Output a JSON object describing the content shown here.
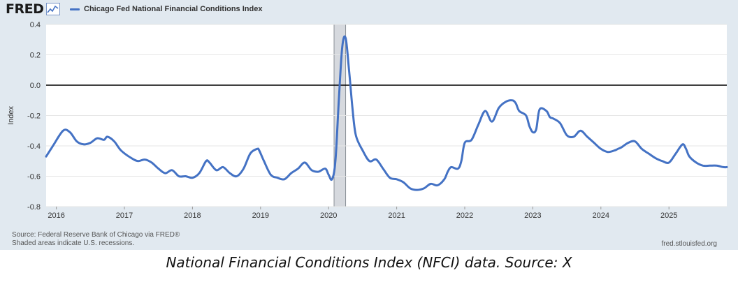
{
  "brand": {
    "name": "FRED",
    "icon": "trend-chart-icon"
  },
  "colors": {
    "series": "#4472c4",
    "panel": "#e1e9f0",
    "plot": "#ffffff",
    "recession": "#d6d9de",
    "zero_line": "#000000"
  },
  "footer": {
    "source": "Source: Federal Reserve Bank of Chicago via FRED®",
    "shading": "Shaded areas indicate U.S. recessions.",
    "url": "fred.stlouisfed.org"
  },
  "caption": "National Financial Conditions Index (NFCI) data. Source: X",
  "chart_data": {
    "type": "line",
    "title": "",
    "xlabel": "",
    "ylabel": "Index",
    "xlim": [
      2015.85,
      2025.85
    ],
    "ylim": [
      -0.8,
      0.4
    ],
    "y_ticks": [
      "0.4",
      "0.2",
      "0.0",
      "-0.2",
      "-0.4",
      "-0.6",
      "-0.8"
    ],
    "y_tick_values": [
      0.4,
      0.2,
      0.0,
      -0.2,
      -0.4,
      -0.6,
      -0.8
    ],
    "x_ticks": [
      "2016",
      "2017",
      "2018",
      "2019",
      "2020",
      "2021",
      "2022",
      "2023",
      "2024",
      "2025"
    ],
    "x_tick_values": [
      2016,
      2017,
      2018,
      2019,
      2020,
      2021,
      2022,
      2023,
      2024,
      2025
    ],
    "grid": true,
    "zero_line": true,
    "recessions": [
      [
        2020.08,
        2020.25
      ]
    ],
    "legend_position": "top-left",
    "series": [
      {
        "name": "Chicago Fed National Financial Conditions Index",
        "x": [
          2015.85,
          2015.95,
          2016.1,
          2016.2,
          2016.3,
          2016.4,
          2016.5,
          2016.6,
          2016.7,
          2016.75,
          2016.85,
          2016.95,
          2017.1,
          2017.2,
          2017.3,
          2017.4,
          2017.5,
          2017.6,
          2017.7,
          2017.8,
          2017.9,
          2018.0,
          2018.1,
          2018.2,
          2018.25,
          2018.35,
          2018.45,
          2018.55,
          2018.65,
          2018.75,
          2018.85,
          2018.95,
          2018.98,
          2019.05,
          2019.15,
          2019.25,
          2019.35,
          2019.45,
          2019.55,
          2019.65,
          2019.75,
          2019.85,
          2019.95,
          2020.0,
          2020.05,
          2020.1,
          2020.15,
          2020.2,
          2020.25,
          2020.3,
          2020.35,
          2020.4,
          2020.5,
          2020.6,
          2020.7,
          2020.8,
          2020.9,
          2021.0,
          2021.1,
          2021.2,
          2021.3,
          2021.4,
          2021.5,
          2021.6,
          2021.7,
          2021.75,
          2021.8,
          2021.9,
          2021.95,
          2022.0,
          2022.1,
          2022.2,
          2022.3,
          2022.4,
          2022.5,
          2022.6,
          2022.7,
          2022.75,
          2022.8,
          2022.9,
          2022.95,
          2023.0,
          2023.05,
          2023.1,
          2023.2,
          2023.25,
          2023.3,
          2023.4,
          2023.5,
          2023.6,
          2023.7,
          2023.8,
          2023.9,
          2024.0,
          2024.1,
          2024.2,
          2024.25,
          2024.3,
          2024.4,
          2024.5,
          2024.6,
          2024.7,
          2024.8,
          2024.9,
          2025.0,
          2025.1,
          2025.2,
          2025.25,
          2025.3,
          2025.4,
          2025.5,
          2025.6,
          2025.7,
          2025.8,
          2025.85
        ],
        "y": [
          -0.47,
          -0.4,
          -0.3,
          -0.31,
          -0.37,
          -0.39,
          -0.38,
          -0.35,
          -0.36,
          -0.34,
          -0.37,
          -0.43,
          -0.48,
          -0.5,
          -0.49,
          -0.51,
          -0.55,
          -0.58,
          -0.56,
          -0.6,
          -0.6,
          -0.61,
          -0.58,
          -0.5,
          -0.51,
          -0.56,
          -0.54,
          -0.58,
          -0.6,
          -0.55,
          -0.45,
          -0.42,
          -0.43,
          -0.5,
          -0.59,
          -0.61,
          -0.62,
          -0.58,
          -0.55,
          -0.51,
          -0.56,
          -0.57,
          -0.55,
          -0.59,
          -0.62,
          -0.5,
          -0.1,
          0.25,
          0.31,
          0.1,
          -0.15,
          -0.33,
          -0.43,
          -0.5,
          -0.49,
          -0.55,
          -0.61,
          -0.62,
          -0.64,
          -0.68,
          -0.69,
          -0.68,
          -0.65,
          -0.66,
          -0.62,
          -0.57,
          -0.54,
          -0.55,
          -0.5,
          -0.38,
          -0.36,
          -0.26,
          -0.17,
          -0.24,
          -0.15,
          -0.11,
          -0.1,
          -0.12,
          -0.17,
          -0.2,
          -0.27,
          -0.31,
          -0.29,
          -0.16,
          -0.17,
          -0.21,
          -0.22,
          -0.25,
          -0.33,
          -0.34,
          -0.3,
          -0.34,
          -0.38,
          -0.42,
          -0.44,
          -0.43,
          -0.42,
          -0.41,
          -0.38,
          -0.37,
          -0.42,
          -0.45,
          -0.48,
          -0.5,
          -0.51,
          -0.45,
          -0.39,
          -0.42,
          -0.47,
          -0.51,
          -0.53,
          -0.53,
          -0.53,
          -0.54,
          -0.54
        ]
      }
    ]
  }
}
